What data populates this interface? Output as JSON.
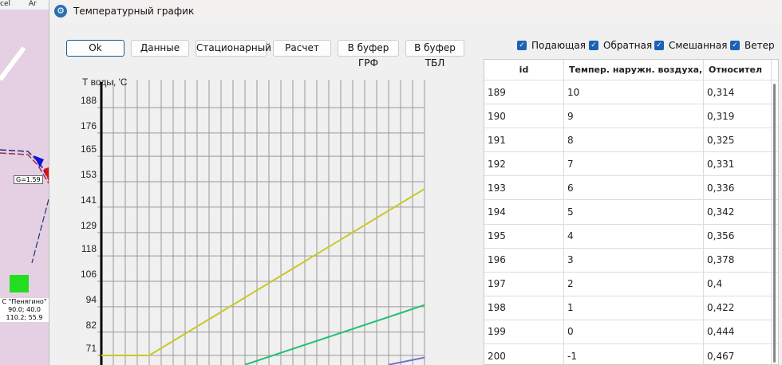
{
  "map": {
    "menu": [
      "cel",
      "Ar"
    ],
    "pipe_label": "G=1.59",
    "station_name": "С \"Пенягино\"",
    "station_line1": "90.0; 40.0",
    "station_line2": "110.2; 55.9"
  },
  "window": {
    "title": "Температурный график",
    "icon": "gear-icon"
  },
  "toolbar": {
    "buttons": [
      "Ok",
      "Данные",
      "Стационарный",
      "Расчет",
      "В буфер ГРФ",
      "В буфер ТБЛ"
    ]
  },
  "legend": {
    "checkboxes": [
      {
        "label": "Подающая",
        "checked": true
      },
      {
        "label": "Обратная",
        "checked": true
      },
      {
        "label": "Смешанная",
        "checked": true
      },
      {
        "label": "Ветер",
        "checked": true
      }
    ]
  },
  "table": {
    "columns": [
      "id",
      "Темпер. наружн. воздуха, °C",
      "Относител"
    ],
    "rows": [
      [
        "189",
        "10",
        "0,314"
      ],
      [
        "190",
        "9",
        "0,319"
      ],
      [
        "191",
        "8",
        "0,325"
      ],
      [
        "192",
        "7",
        "0,331"
      ],
      [
        "193",
        "6",
        "0,336"
      ],
      [
        "194",
        "5",
        "0,342"
      ],
      [
        "195",
        "4",
        "0,356"
      ],
      [
        "196",
        "3",
        "0,378"
      ],
      [
        "197",
        "2",
        "0,4"
      ],
      [
        "198",
        "1",
        "0,422"
      ],
      [
        "199",
        "0",
        "0,444"
      ],
      [
        "200",
        "-1",
        "0,467"
      ]
    ]
  },
  "chart_data": {
    "type": "line",
    "ylabel": "Т воды, 'С",
    "yticks": [
      188,
      176,
      165,
      153,
      141,
      129,
      118,
      106,
      94,
      82,
      71
    ],
    "ylim": [
      66,
      192
    ],
    "xlim": [
      0,
      27
    ],
    "grid": true,
    "series": [
      {
        "color": "#c8c828",
        "x": [
          0,
          4,
          27
        ],
        "y": [
          71,
          71,
          149.6
        ]
      },
      {
        "color": "#20c070",
        "x": [
          12,
          27
        ],
        "y": [
          66.6,
          94.8
        ]
      },
      {
        "color": "#7070d0",
        "x": [
          24,
          27
        ],
        "y": [
          66.6,
          70
        ]
      }
    ]
  }
}
